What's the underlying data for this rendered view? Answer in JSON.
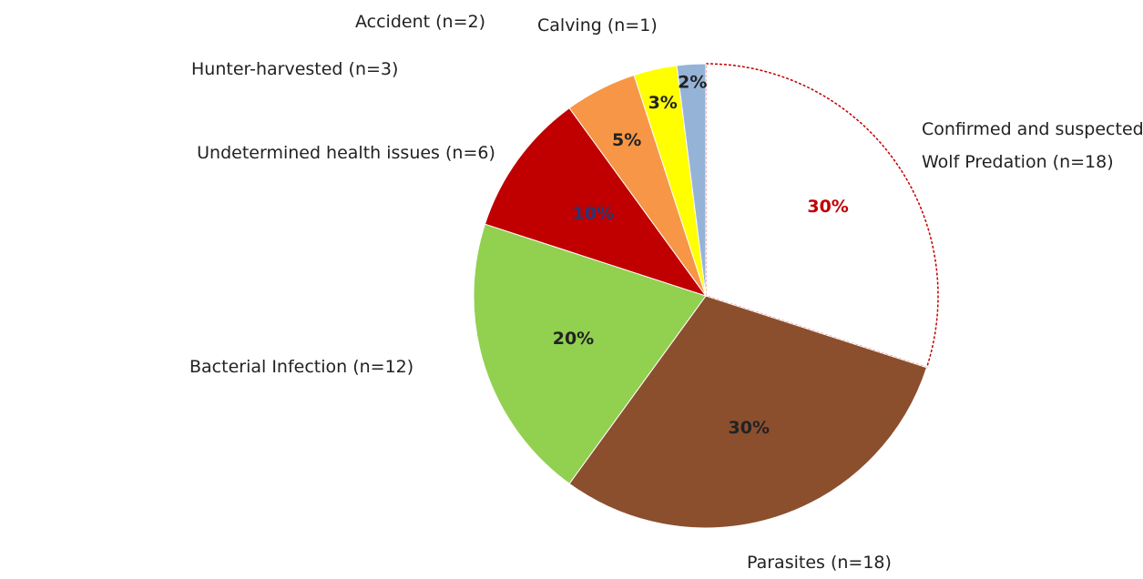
{
  "chart_data": {
    "type": "pie",
    "categories": [
      "Confirmed and suspected Wolf Predation (n=18)",
      "Parasites (n=18)",
      "Bacterial Infection (n=12)",
      "Undetermined health issues (n=6)",
      "Hunter-harvested (n=3)",
      "Accident (n=2)",
      "Calving (n=1)"
    ],
    "values": [
      30,
      30,
      20,
      10,
      5,
      3,
      2
    ],
    "value_labels": [
      "30%",
      "30%",
      "20%",
      "10%",
      "5%",
      "3%",
      "2%"
    ],
    "colors": [
      "#ffffff",
      "#8b4f2e",
      "#92d050",
      "#c00000",
      "#f79646",
      "#ffff00",
      "#95b3d7"
    ]
  }
}
